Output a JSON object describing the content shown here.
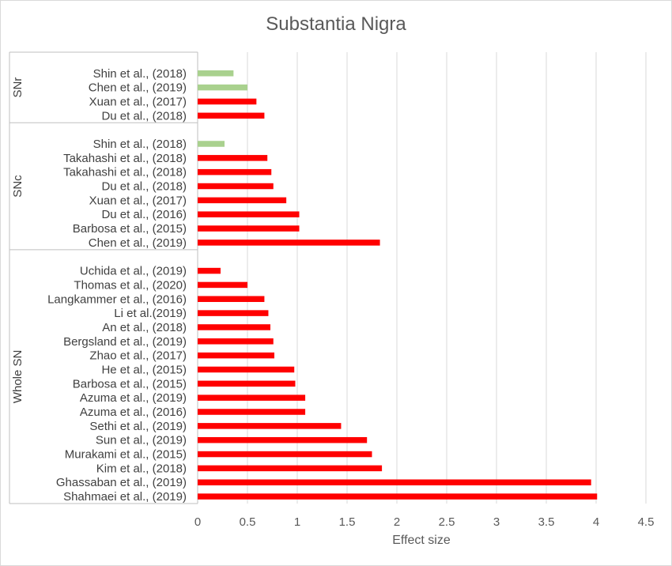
{
  "chart_data": {
    "type": "bar",
    "orientation": "horizontal",
    "title": "Substantia Nigra",
    "xlabel": "Effect size",
    "xlim": [
      0,
      4.5
    ],
    "xticks": [
      "0",
      "0.5",
      "1",
      "1.5",
      "2",
      "2.5",
      "3",
      "3.5",
      "4",
      "4.5"
    ],
    "grid": "vertical",
    "colors": {
      "increase": "#ff0000",
      "decrease": "#a9d18e"
    },
    "groups": [
      {
        "name": "SNr",
        "items": [
          {
            "label": "Shin et al., (2018)",
            "value": 0.36,
            "color": "decrease"
          },
          {
            "label": "Chen et al., (2019)",
            "value": 0.5,
            "color": "decrease"
          },
          {
            "label": "Xuan et al., (2017)",
            "value": 0.59,
            "color": "increase"
          },
          {
            "label": "Du et al., (2018)",
            "value": 0.67,
            "color": "increase"
          }
        ]
      },
      {
        "name": "SNc",
        "items": [
          {
            "label": "Shin et al., (2018)",
            "value": 0.27,
            "color": "decrease"
          },
          {
            "label": "Takahashi et al., (2018)",
            "value": 0.7,
            "color": "increase"
          },
          {
            "label": "Takahashi et al., (2018)",
            "value": 0.74,
            "color": "increase"
          },
          {
            "label": "Du et al., (2018)",
            "value": 0.76,
            "color": "increase"
          },
          {
            "label": "Xuan et al., (2017)",
            "value": 0.89,
            "color": "increase"
          },
          {
            "label": "Du et al., (2016)",
            "value": 1.02,
            "color": "increase"
          },
          {
            "label": "Barbosa et al., (2015)",
            "value": 1.02,
            "color": "increase"
          },
          {
            "label": "Chen et al., (2019)",
            "value": 1.83,
            "color": "increase"
          }
        ]
      },
      {
        "name": "Whole SN",
        "items": [
          {
            "label": "Uchida et al., (2019)",
            "value": 0.23,
            "color": "increase"
          },
          {
            "label": "Thomas et al., (2020)",
            "value": 0.5,
            "color": "increase"
          },
          {
            "label": "Langkammer et al., (2016)",
            "value": 0.67,
            "color": "increase"
          },
          {
            "label": "Li et al.(2019)",
            "value": 0.71,
            "color": "increase"
          },
          {
            "label": "An et al., (2018)",
            "value": 0.73,
            "color": "increase"
          },
          {
            "label": "Bergsland et al., (2019)",
            "value": 0.76,
            "color": "increase"
          },
          {
            "label": "Zhao et al., (2017)",
            "value": 0.77,
            "color": "increase"
          },
          {
            "label": "He et al., (2015)",
            "value": 0.97,
            "color": "increase"
          },
          {
            "label": "Barbosa et al., (2015)",
            "value": 0.98,
            "color": "increase"
          },
          {
            "label": "Azuma et al., (2019)",
            "value": 1.08,
            "color": "increase"
          },
          {
            "label": "Azuma et al., (2016)",
            "value": 1.08,
            "color": "increase"
          },
          {
            "label": "Sethi et al., (2019)",
            "value": 1.44,
            "color": "increase"
          },
          {
            "label": "Sun et al., (2019)",
            "value": 1.7,
            "color": "increase"
          },
          {
            "label": "Murakami et al., (2015)",
            "value": 1.75,
            "color": "increase"
          },
          {
            "label": "Kim et al., (2018)",
            "value": 1.85,
            "color": "increase"
          },
          {
            "label": "Ghassaban et al., (2019)",
            "value": 3.95,
            "color": "increase"
          },
          {
            "label": "Shahmaei et al., (2019)",
            "value": 4.01,
            "color": "increase"
          }
        ]
      }
    ]
  }
}
